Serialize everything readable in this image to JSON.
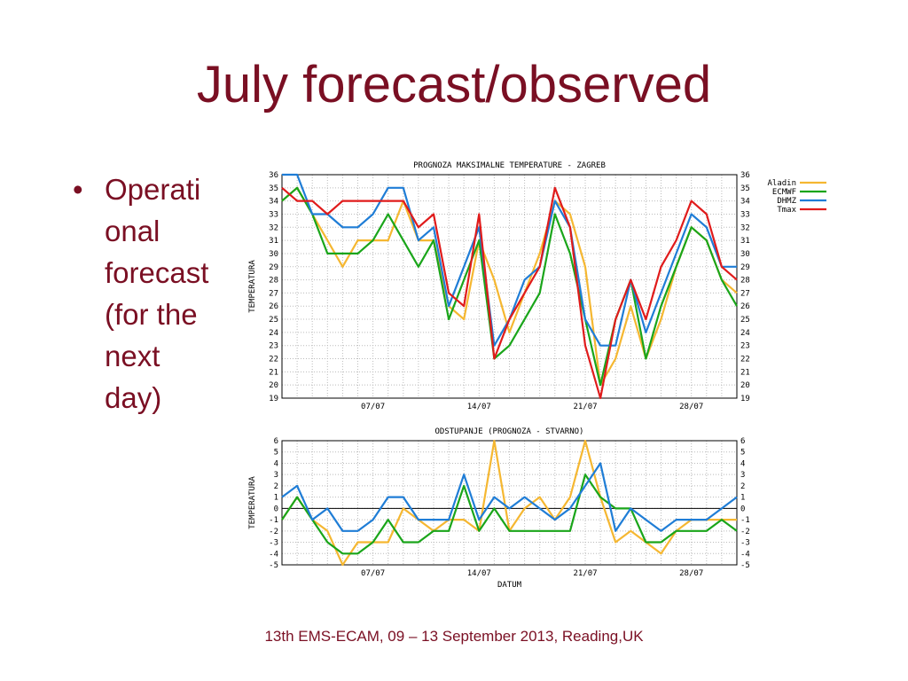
{
  "slide": {
    "title": "July forecast/observed",
    "bullet_symbol": "•",
    "bullet_lines": [
      "Operati",
      "onal",
      "forecast",
      "(for the",
      "next",
      "day)"
    ],
    "footer": "13th EMS-ECAM, 09 – 13 September 2013, Reading,UK"
  },
  "chart_data": [
    {
      "type": "line",
      "title": "PROGNOZA MAKSIMALNE TEMPERATURE - ZAGREB",
      "xlabel": "",
      "ylabel": "TEMPERATURA",
      "xlim": [
        1,
        31
      ],
      "ylim": [
        19,
        36
      ],
      "yticks": [
        "19",
        "20",
        "21",
        "22",
        "23",
        "24",
        "25",
        "26",
        "27",
        "28",
        "29",
        "30",
        "31",
        "32",
        "33",
        "34",
        "35",
        "36"
      ],
      "xticks": [
        {
          "x": 7,
          "label": "07/07"
        },
        {
          "x": 14,
          "label": "14/07"
        },
        {
          "x": 21,
          "label": "21/07"
        },
        {
          "x": 28,
          "label": "28/07"
        }
      ],
      "grid": true,
      "legend": "right",
      "x": [
        1,
        2,
        3,
        4,
        5,
        6,
        7,
        8,
        9,
        10,
        11,
        12,
        13,
        14,
        15,
        16,
        17,
        18,
        19,
        20,
        21,
        22,
        23,
        24,
        25,
        26,
        27,
        28,
        29,
        30,
        31
      ],
      "series": [
        {
          "name": "Aladin",
          "color": "#f5b731",
          "values": [
            34,
            35,
            33,
            31,
            29,
            31,
            31,
            31,
            34,
            31,
            31,
            26,
            25,
            31,
            28,
            24,
            27,
            30,
            34,
            33,
            29,
            20,
            22,
            26,
            22,
            25,
            29,
            32,
            31,
            28,
            27
          ]
        },
        {
          "name": "ECMWF",
          "color": "#1aa51a",
          "values": [
            34,
            35,
            33,
            30,
            30,
            30,
            31,
            33,
            31,
            29,
            31,
            25,
            28,
            31,
            22,
            23,
            25,
            27,
            33,
            30,
            25,
            20,
            25,
            28,
            22,
            26,
            29,
            32,
            31,
            28,
            26
          ]
        },
        {
          "name": "DHMZ",
          "color": "#1f7dd6",
          "values": [
            36,
            36,
            33,
            33,
            32,
            32,
            33,
            35,
            35,
            31,
            32,
            26,
            29,
            32,
            23,
            25,
            28,
            29,
            34,
            32,
            25,
            23,
            23,
            28,
            24,
            27,
            30,
            33,
            32,
            29,
            29
          ]
        },
        {
          "name": "Tmax",
          "color": "#e01b1b",
          "values": [
            35,
            34,
            34,
            33,
            34,
            34,
            34,
            34,
            34,
            32,
            33,
            27,
            26,
            33,
            22,
            25,
            27,
            29,
            35,
            32,
            23,
            19,
            25,
            28,
            25,
            29,
            31,
            34,
            33,
            29,
            28
          ]
        }
      ]
    },
    {
      "type": "line",
      "title": "ODSTUPANJE (PROGNOZA - STVARNO)",
      "xlabel": "DATUM",
      "ylabel": "TEMPERATURA",
      "xlim": [
        1,
        31
      ],
      "ylim": [
        -5,
        6
      ],
      "yticks": [
        "-5",
        "-4",
        "-3",
        "-2",
        "-1",
        "0",
        "1",
        "2",
        "3",
        "4",
        "5",
        "6"
      ],
      "xticks": [
        {
          "x": 7,
          "label": "07/07"
        },
        {
          "x": 14,
          "label": "14/07"
        },
        {
          "x": 21,
          "label": "21/07"
        },
        {
          "x": 28,
          "label": "28/07"
        }
      ],
      "grid": true,
      "zero_line": true,
      "x": [
        1,
        2,
        3,
        4,
        5,
        6,
        7,
        8,
        9,
        10,
        11,
        12,
        13,
        14,
        15,
        16,
        17,
        18,
        19,
        20,
        21,
        22,
        23,
        24,
        25,
        26,
        27,
        28,
        29,
        30,
        31
      ],
      "series": [
        {
          "name": "Aladin",
          "color": "#f5b731",
          "values": [
            -1,
            1,
            -1,
            -2,
            -5,
            -3,
            -3,
            -3,
            0,
            -1,
            -2,
            -1,
            -1,
            -2,
            6,
            -2,
            0,
            1,
            -1,
            1,
            6,
            1,
            -3,
            -2,
            -3,
            -4,
            -2,
            -1,
            -1,
            -1,
            -1
          ]
        },
        {
          "name": "ECMWF",
          "color": "#1aa51a",
          "values": [
            -1,
            1,
            -1,
            -3,
            -4,
            -4,
            -3,
            -1,
            -3,
            -3,
            -2,
            -2,
            2,
            -2,
            0,
            -2,
            -2,
            -2,
            -2,
            -2,
            3,
            1,
            0,
            0,
            -3,
            -3,
            -2,
            -2,
            -2,
            -1,
            -2
          ]
        },
        {
          "name": "DHMZ",
          "color": "#1f7dd6",
          "values": [
            1,
            2,
            -1,
            0,
            -2,
            -2,
            -1,
            1,
            1,
            -1,
            -1,
            -1,
            3,
            -1,
            1,
            0,
            1,
            0,
            -1,
            0,
            2,
            4,
            -2,
            0,
            -1,
            -2,
            -1,
            -1,
            -1,
            0,
            1
          ]
        }
      ]
    }
  ]
}
